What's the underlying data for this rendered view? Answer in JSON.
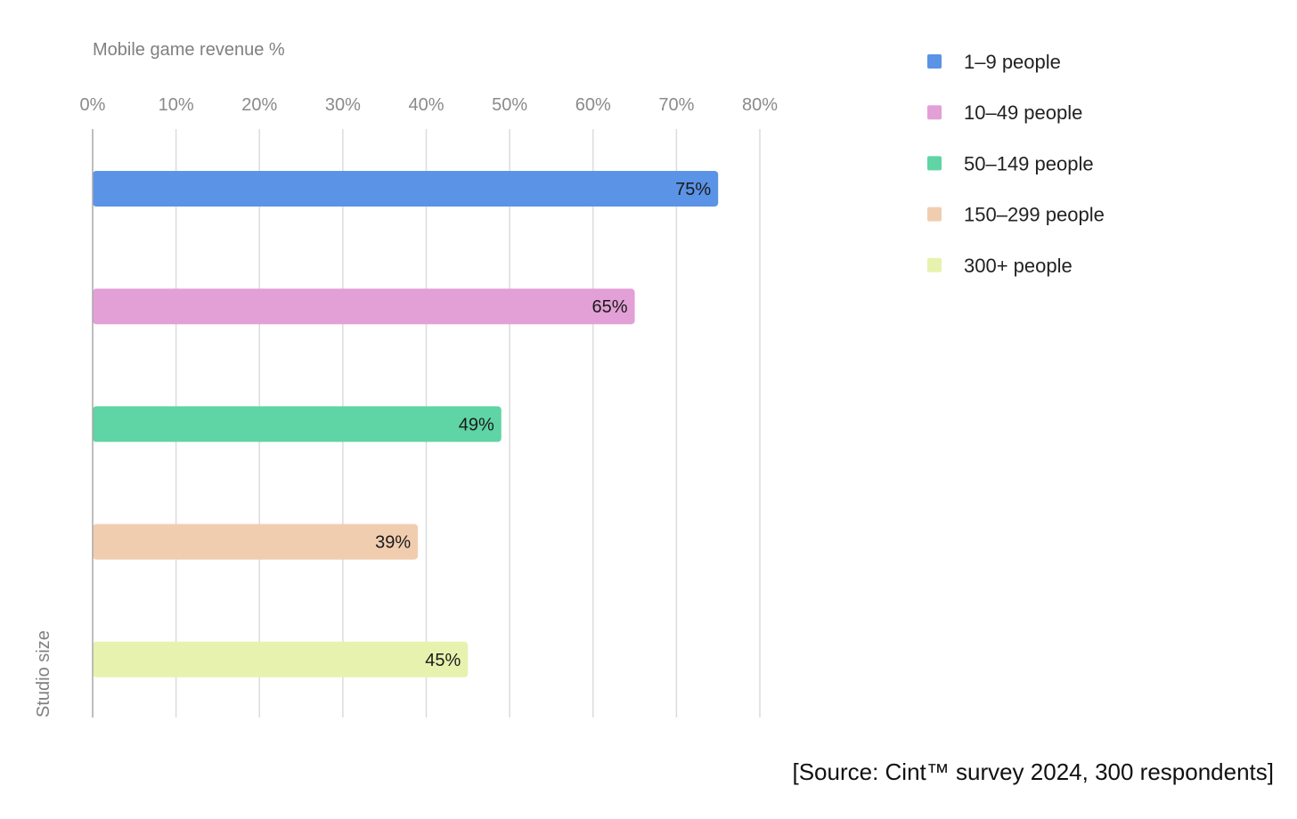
{
  "chart_data": {
    "type": "bar",
    "orientation": "horizontal",
    "xlabel": "Mobile game revenue %",
    "ylabel": "Studio size",
    "xlim": [
      0,
      80
    ],
    "xticks": [
      0,
      10,
      20,
      30,
      40,
      50,
      60,
      70,
      80
    ],
    "xtick_labels": [
      "0%",
      "10%",
      "20%",
      "30%",
      "40%",
      "50%",
      "60%",
      "70%",
      "80%"
    ],
    "grid": true,
    "legend_position": "top-right",
    "series": [
      {
        "name": "1–9 people",
        "value": 75,
        "label": "75%",
        "color": "#5B93E6"
      },
      {
        "name": "10–49 people",
        "value": 65,
        "label": "65%",
        "color": "#E2A0D6"
      },
      {
        "name": "50–149 people",
        "value": 49,
        "label": "49%",
        "color": "#5FD4A4"
      },
      {
        "name": "150–299 people",
        "value": 39,
        "label": "39%",
        "color": "#F1CDB0"
      },
      {
        "name": "300+ people",
        "value": 45,
        "label": "45%",
        "color": "#E7F2AE"
      }
    ]
  },
  "source_note": "[Source: Cint™ survey 2024, 300 respondents]"
}
